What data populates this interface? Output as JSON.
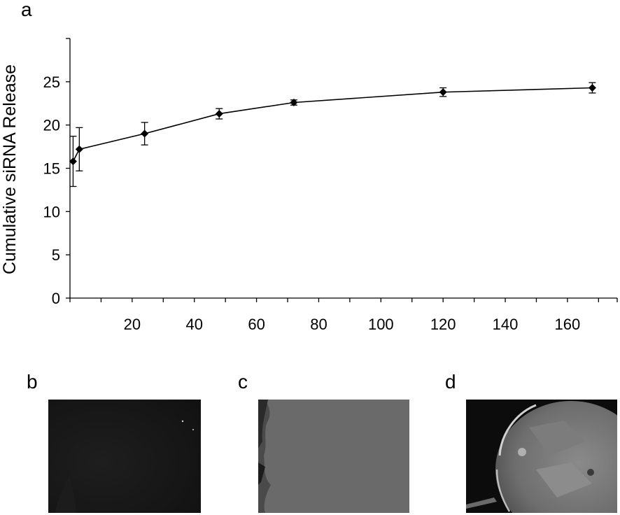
{
  "panels": {
    "a": "a",
    "b": "b",
    "c": "c",
    "d": "d"
  },
  "chart_data": {
    "type": "line",
    "title": "",
    "xlabel": "",
    "ylabel": "Cumulative siRNA Release",
    "xlim": [
      0,
      176
    ],
    "ylim": [
      0,
      30
    ],
    "x_ticks": [
      20,
      40,
      60,
      80,
      100,
      120,
      140,
      160
    ],
    "y_ticks": [
      0,
      5,
      10,
      15,
      20,
      25
    ],
    "grid": false,
    "marker": "diamond",
    "series": [
      {
        "x": [
          1,
          3,
          24,
          48,
          72,
          120,
          168
        ],
        "y": [
          15.8,
          17.2,
          19.0,
          21.3,
          22.6,
          23.8,
          24.3
        ],
        "err": [
          2.9,
          2.5,
          1.3,
          0.6,
          0.3,
          0.5,
          0.6
        ]
      }
    ]
  },
  "images": {
    "b": {
      "description_tone": "dark"
    },
    "c": {
      "description_tone": "gray"
    },
    "d": {
      "description_tone": "bright"
    }
  }
}
